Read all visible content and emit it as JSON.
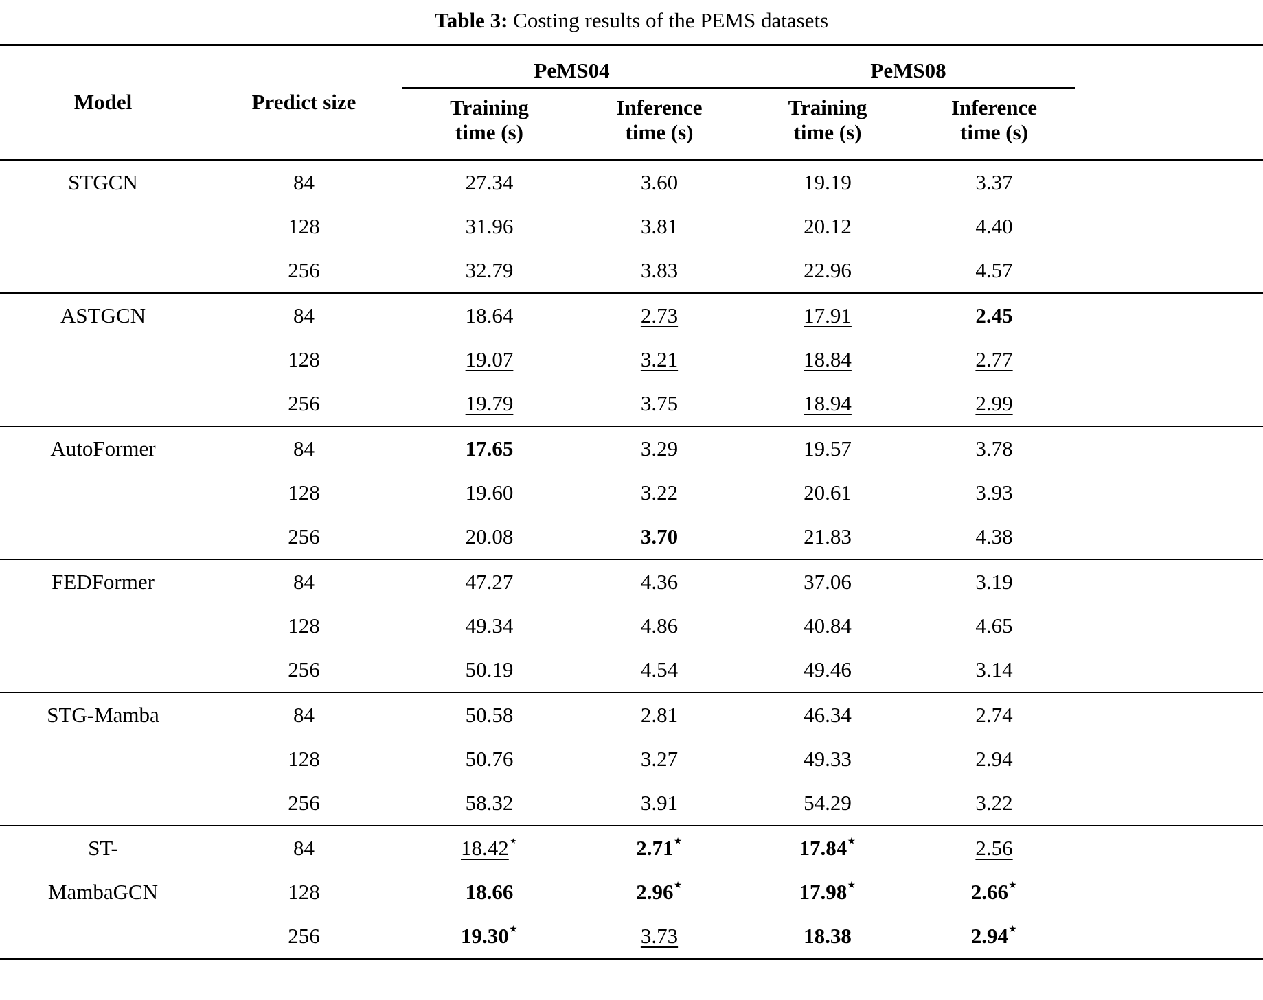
{
  "caption": {
    "label": "Table 3:",
    "text": " Costing results of the PEMS datasets"
  },
  "table": {
    "columns": {
      "model": "Model",
      "predict_size": "Predict size"
    },
    "group_headers": [
      "PeMS04",
      "PeMS08"
    ],
    "sub_headers": [
      "Training time (s)",
      "Inference time (s)",
      "Training time (s)",
      "Inference time (s)"
    ],
    "star_symbol": "⋆",
    "groups": [
      {
        "model_lines": [
          "STGCN"
        ],
        "rows": [
          {
            "predict_size": "84",
            "values": [
              {
                "v": "27.34"
              },
              {
                "v": "3.60"
              },
              {
                "v": "19.19"
              },
              {
                "v": "3.37"
              }
            ]
          },
          {
            "predict_size": "128",
            "values": [
              {
                "v": "31.96"
              },
              {
                "v": "3.81"
              },
              {
                "v": "20.12"
              },
              {
                "v": "4.40"
              }
            ]
          },
          {
            "predict_size": "256",
            "values": [
              {
                "v": "32.79"
              },
              {
                "v": "3.83"
              },
              {
                "v": "22.96"
              },
              {
                "v": "4.57"
              }
            ]
          }
        ]
      },
      {
        "model_lines": [
          "ASTGCN"
        ],
        "rows": [
          {
            "predict_size": "84",
            "values": [
              {
                "v": "18.64"
              },
              {
                "v": "2.73",
                "u": true
              },
              {
                "v": "17.91",
                "u": true
              },
              {
                "v": "2.45",
                "b": true
              }
            ]
          },
          {
            "predict_size": "128",
            "values": [
              {
                "v": "19.07",
                "u": true
              },
              {
                "v": "3.21",
                "u": true
              },
              {
                "v": "18.84",
                "u": true
              },
              {
                "v": "2.77",
                "u": true
              }
            ]
          },
          {
            "predict_size": "256",
            "values": [
              {
                "v": "19.79",
                "u": true
              },
              {
                "v": "3.75"
              },
              {
                "v": "18.94",
                "u": true
              },
              {
                "v": "2.99",
                "u": true
              }
            ]
          }
        ]
      },
      {
        "model_lines": [
          "AutoFormer"
        ],
        "rows": [
          {
            "predict_size": "84",
            "values": [
              {
                "v": "17.65",
                "b": true
              },
              {
                "v": "3.29"
              },
              {
                "v": "19.57"
              },
              {
                "v": "3.78"
              }
            ]
          },
          {
            "predict_size": "128",
            "values": [
              {
                "v": "19.60"
              },
              {
                "v": "3.22"
              },
              {
                "v": "20.61"
              },
              {
                "v": "3.93"
              }
            ]
          },
          {
            "predict_size": "256",
            "values": [
              {
                "v": "20.08"
              },
              {
                "v": "3.70",
                "b": true
              },
              {
                "v": "21.83"
              },
              {
                "v": "4.38"
              }
            ]
          }
        ]
      },
      {
        "model_lines": [
          "FEDFormer"
        ],
        "rows": [
          {
            "predict_size": "84",
            "values": [
              {
                "v": "47.27"
              },
              {
                "v": "4.36"
              },
              {
                "v": "37.06"
              },
              {
                "v": "3.19"
              }
            ]
          },
          {
            "predict_size": "128",
            "values": [
              {
                "v": "49.34"
              },
              {
                "v": "4.86"
              },
              {
                "v": "40.84"
              },
              {
                "v": "4.65"
              }
            ]
          },
          {
            "predict_size": "256",
            "values": [
              {
                "v": "50.19"
              },
              {
                "v": "4.54"
              },
              {
                "v": "49.46"
              },
              {
                "v": "3.14"
              }
            ]
          }
        ]
      },
      {
        "model_lines": [
          "STG-Mamba"
        ],
        "rows": [
          {
            "predict_size": "84",
            "values": [
              {
                "v": "50.58"
              },
              {
                "v": "2.81"
              },
              {
                "v": "46.34"
              },
              {
                "v": "2.74"
              }
            ]
          },
          {
            "predict_size": "128",
            "values": [
              {
                "v": "50.76"
              },
              {
                "v": "3.27"
              },
              {
                "v": "49.33"
              },
              {
                "v": "2.94"
              }
            ]
          },
          {
            "predict_size": "256",
            "values": [
              {
                "v": "58.32"
              },
              {
                "v": "3.91"
              },
              {
                "v": "54.29"
              },
              {
                "v": "3.22"
              }
            ]
          }
        ]
      },
      {
        "model_lines": [
          "ST-",
          "MambaGCN"
        ],
        "rows": [
          {
            "predict_size": "84",
            "values": [
              {
                "v": "18.42",
                "u": true,
                "star": true
              },
              {
                "v": "2.71",
                "b": true,
                "star": true
              },
              {
                "v": "17.84",
                "b": true,
                "star": true
              },
              {
                "v": "2.56",
                "u": true
              }
            ]
          },
          {
            "predict_size": "128",
            "values": [
              {
                "v": "18.66",
                "b": true
              },
              {
                "v": "2.96",
                "b": true,
                "star": true
              },
              {
                "v": "17.98",
                "b": true,
                "star": true
              },
              {
                "v": "2.66",
                "b": true,
                "star": true
              }
            ]
          },
          {
            "predict_size": "256",
            "values": [
              {
                "v": "19.30",
                "b": true,
                "star": true
              },
              {
                "v": "3.73",
                "u": true
              },
              {
                "v": "18.38",
                "b": true
              },
              {
                "v": "2.94",
                "b": true,
                "star": true
              }
            ]
          }
        ]
      }
    ]
  }
}
